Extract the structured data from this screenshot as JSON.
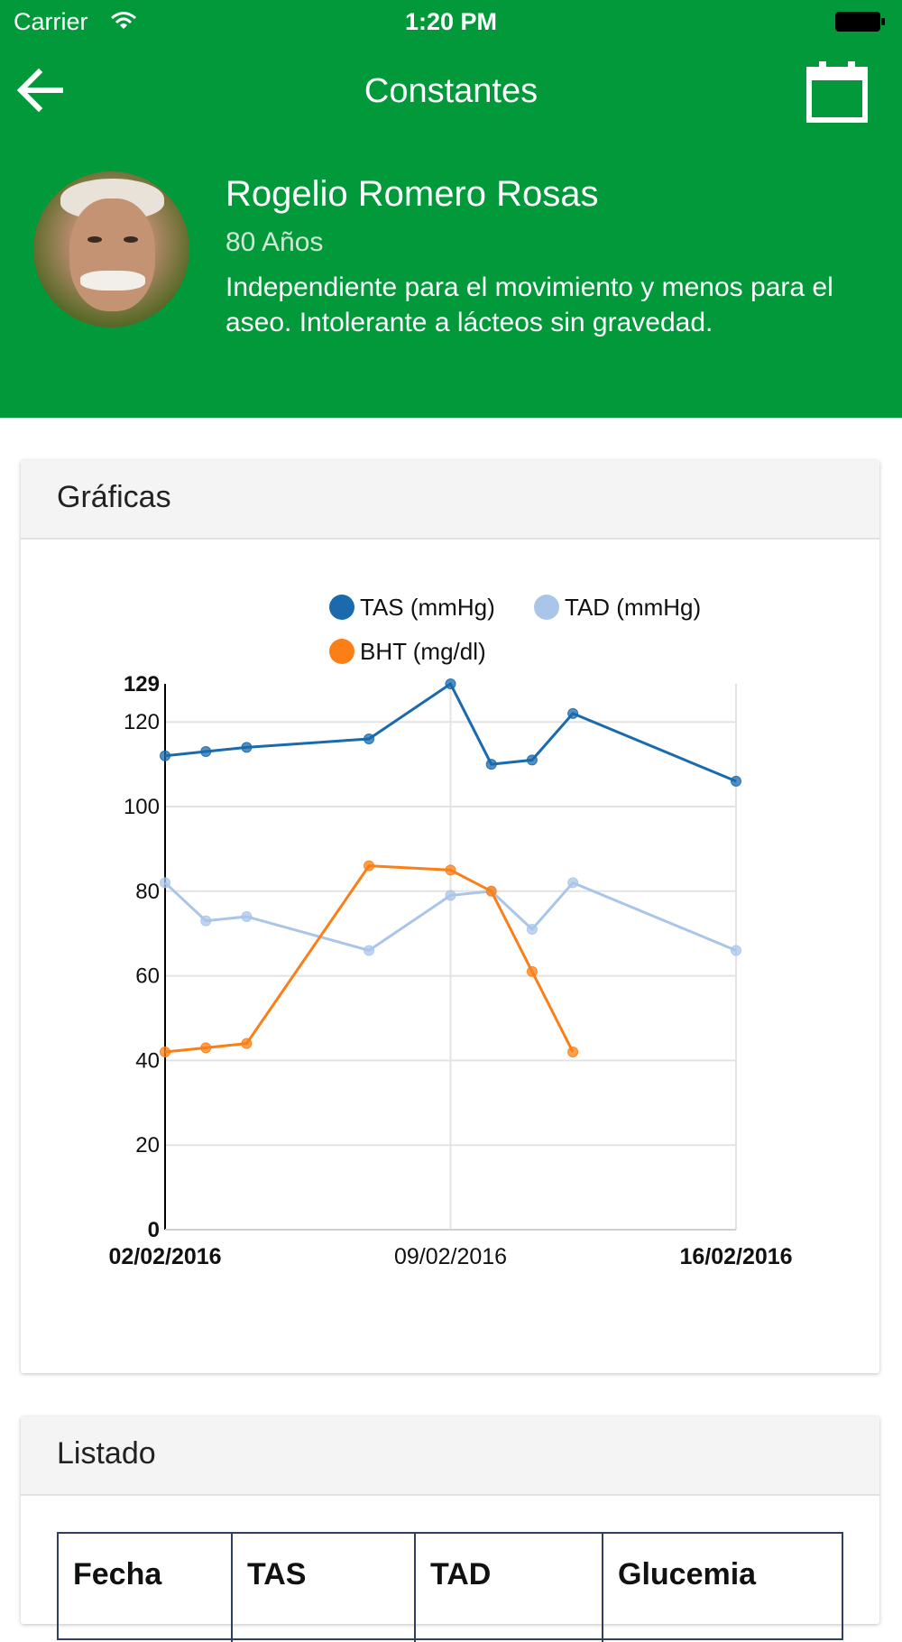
{
  "status": {
    "carrier": "Carrier",
    "time": "1:20 PM"
  },
  "nav": {
    "title": "Constantes",
    "back_icon": "arrow-left-icon",
    "calendar_icon": "calendar-icon"
  },
  "patient": {
    "name": "Rogelio Romero Rosas",
    "age": "80 Años",
    "notes": "Independiente para el movimiento y menos para el aseo. Intolerante a lácteos sin gravedad."
  },
  "graph_card": {
    "title": "Gráficas"
  },
  "list_card": {
    "title": "Listado",
    "columns": [
      "Fecha",
      "TAS",
      "TAD",
      "Glucemia"
    ]
  },
  "colors": {
    "header": "#019939",
    "tas": "#1a6aad",
    "tad": "#a9c6ea",
    "bht": "#fb7f17"
  },
  "chart_data": {
    "type": "line",
    "x_axis": {
      "ticks": [
        "02/02/2016",
        "09/02/2016",
        "16/02/2016"
      ],
      "range": [
        "02/02/2016",
        "16/02/2016"
      ]
    },
    "y_axis": {
      "ticks": [
        "0",
        "20",
        "40",
        "60",
        "80",
        "100",
        "120",
        "129"
      ],
      "range": [
        0,
        129
      ]
    },
    "grid": true,
    "legend_position": "top-right",
    "series": [
      {
        "name": "TAS (mmHg)",
        "color": "#1a6aad",
        "points": [
          {
            "x": "02/02/2016",
            "y": 112
          },
          {
            "x": "03/02/2016",
            "y": 113
          },
          {
            "x": "04/02/2016",
            "y": 114
          },
          {
            "x": "07/02/2016",
            "y": 116
          },
          {
            "x": "09/02/2016",
            "y": 129
          },
          {
            "x": "10/02/2016",
            "y": 110
          },
          {
            "x": "11/02/2016",
            "y": 111
          },
          {
            "x": "12/02/2016",
            "y": 122
          },
          {
            "x": "16/02/2016",
            "y": 106
          }
        ]
      },
      {
        "name": "TAD (mmHg)",
        "color": "#a9c6ea",
        "points": [
          {
            "x": "02/02/2016",
            "y": 82
          },
          {
            "x": "03/02/2016",
            "y": 73
          },
          {
            "x": "04/02/2016",
            "y": 74
          },
          {
            "x": "07/02/2016",
            "y": 66
          },
          {
            "x": "09/02/2016",
            "y": 79
          },
          {
            "x": "10/02/2016",
            "y": 80
          },
          {
            "x": "11/02/2016",
            "y": 71
          },
          {
            "x": "12/02/2016",
            "y": 82
          },
          {
            "x": "16/02/2016",
            "y": 66
          }
        ]
      },
      {
        "name": "BHT (mg/dl)",
        "color": "#fb7f17",
        "points": [
          {
            "x": "02/02/2016",
            "y": 42
          },
          {
            "x": "03/02/2016",
            "y": 43
          },
          {
            "x": "04/02/2016",
            "y": 44
          },
          {
            "x": "07/02/2016",
            "y": 86
          },
          {
            "x": "09/02/2016",
            "y": 85
          },
          {
            "x": "10/02/2016",
            "y": 80
          },
          {
            "x": "11/02/2016",
            "y": 61
          },
          {
            "x": "12/02/2016",
            "y": 42
          }
        ]
      }
    ]
  }
}
